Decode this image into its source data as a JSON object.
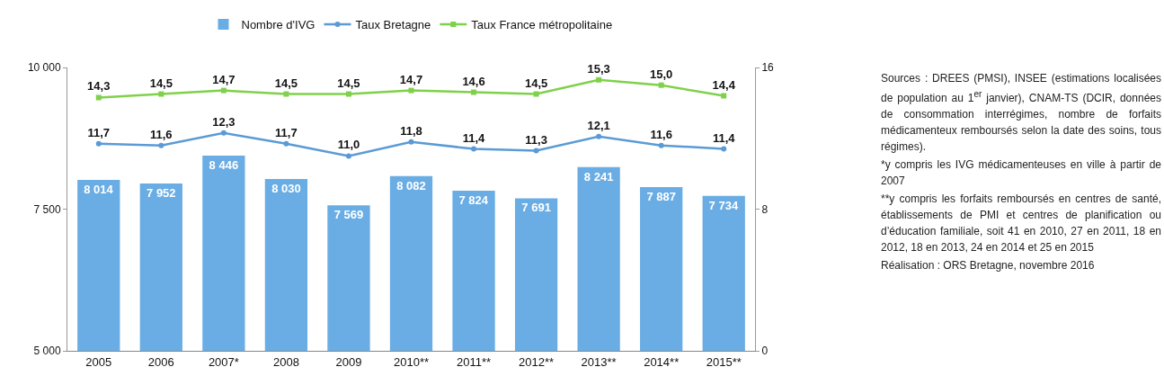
{
  "chart_data": {
    "type": "bar",
    "categories": [
      "2005",
      "2006",
      "2007*",
      "2008",
      "2009",
      "2010**",
      "2011**",
      "2012**",
      "2013**",
      "2014**",
      "2015**"
    ],
    "series": [
      {
        "name": "Nombre d'IVG",
        "color": "#6aade4",
        "values": [
          8014,
          7952,
          8446,
          8030,
          7569,
          8082,
          7824,
          7691,
          8241,
          7887,
          7734
        ],
        "value_labels": [
          "8 014",
          "7 952",
          "8 446",
          "8 030",
          "7 569",
          "8 082",
          "7 824",
          "7 691",
          "8 241",
          "7 887",
          "7 734"
        ]
      },
      {
        "name": "Taux Bretagne",
        "type": "line",
        "axis": "y2",
        "marker": "circle",
        "color": "#5b9bd5",
        "values": [
          11.7,
          11.6,
          12.3,
          11.7,
          11.0,
          11.8,
          11.4,
          11.3,
          12.1,
          11.6,
          11.4
        ],
        "value_labels": [
          "11,7",
          "11,6",
          "12,3",
          "11,7",
          "11,0",
          "11,8",
          "11,4",
          "11,3",
          "12,1",
          "11,6",
          "11,4"
        ]
      },
      {
        "name": "Taux France métropolitaine",
        "type": "line",
        "axis": "y2",
        "marker": "square",
        "color": "#7fd14b",
        "values": [
          14.3,
          14.5,
          14.7,
          14.5,
          14.5,
          14.7,
          14.6,
          14.5,
          15.3,
          15.0,
          14.4
        ],
        "value_labels": [
          "14,3",
          "14,5",
          "14,7",
          "14,5",
          "14,5",
          "14,7",
          "14,6",
          "14,5",
          "15,3",
          "15,0",
          "14,4"
        ]
      }
    ],
    "ylim": [
      5000,
      10000
    ],
    "yticks": [
      {
        "value": 5000,
        "label": "5 000"
      },
      {
        "value": 7500,
        "label": "7 500"
      },
      {
        "value": 10000,
        "label": "10 000"
      }
    ],
    "y2lim": [
      0,
      16
    ],
    "y2ticks": [
      0,
      8,
      16
    ],
    "grid": false,
    "legend": "top",
    "annotations": [
      "Sources : DREES (PMSI), INSEE (estimations localisées de population au 1$^{er}$ janvier), CNAM-TS (DCIR, données de consommation interrégimes, nombre de forfaits médicamenteux remboursés selon la date des soins, tous régimes).",
      "*y compris les IVG médicamenteuses en ville à partir de 2007",
      "**y compris les forfaits remboursés en centres de santé, établissements de PMI et centres de planification ou d’éducation familiale, soit 41 en 2010, 27 en 2011, 18 en 2012, 18 en 2013, 24 en 2014 et 25 en 2015",
      "Réalisation : ORS Bretagne, novembre 2016"
    ]
  }
}
